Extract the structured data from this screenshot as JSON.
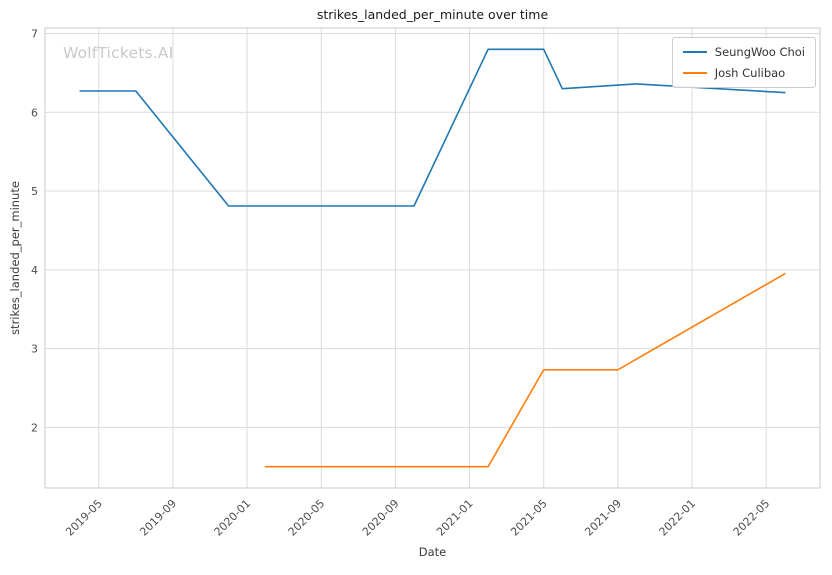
{
  "watermark": "WolfTickets.AI",
  "chart_data": {
    "type": "line",
    "title": "strikes_landed_per_minute over time",
    "xlabel": "Date",
    "ylabel": "strikes_landed_per_minute",
    "grid": true,
    "legend_position": "upper right",
    "x_tick_labels": [
      "2019-05",
      "2019-09",
      "2020-01",
      "2020-05",
      "2020-09",
      "2021-01",
      "2021-05",
      "2021-09",
      "2022-01",
      "2022-05"
    ],
    "y_ticks": [
      2,
      3,
      4,
      5,
      6,
      7
    ],
    "ylim": [
      1.23,
      7.07
    ],
    "xlim_months": [
      1.1,
      42.9
    ],
    "series": [
      {
        "name": "SeungWoo Choi",
        "color": "#1f77b4",
        "points": [
          [
            "2019-04",
            6.27
          ],
          [
            "2019-07",
            6.27
          ],
          [
            "2019-12",
            4.81
          ],
          [
            "2020-10",
            4.81
          ],
          [
            "2021-02",
            6.8
          ],
          [
            "2021-05",
            6.8
          ],
          [
            "2021-06",
            6.3
          ],
          [
            "2021-10",
            6.36
          ],
          [
            "2022-06",
            6.25
          ]
        ]
      },
      {
        "name": "Josh Culibao",
        "color": "#ff7f0e",
        "points": [
          [
            "2020-02",
            1.5
          ],
          [
            "2021-02",
            1.5
          ],
          [
            "2021-05",
            2.73
          ],
          [
            "2021-09",
            2.73
          ],
          [
            "2022-06",
            3.95
          ]
        ]
      }
    ]
  }
}
